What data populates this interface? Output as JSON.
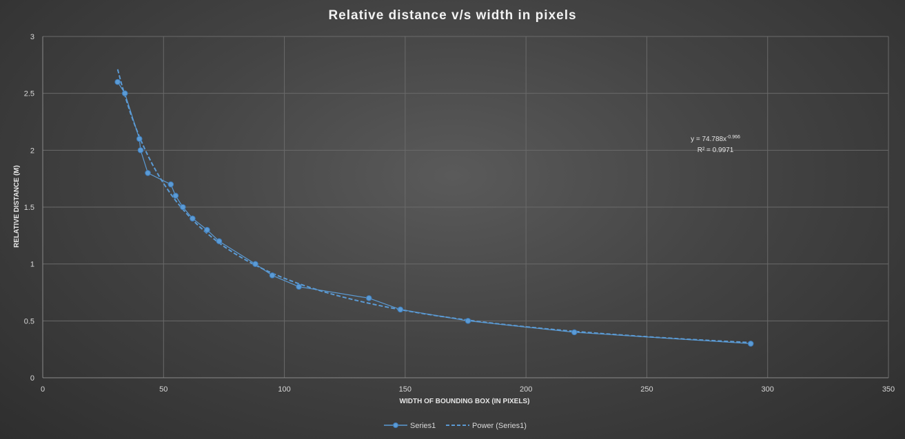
{
  "chart_data": {
    "type": "scatter",
    "title": "Relative distance  v/s  width  in  pixels",
    "xlabel": "WIDTH OF BOUNDING BOX (IN PIXELS)",
    "ylabel": "RELATIVE DISTANCE (M)",
    "xlim": [
      0,
      350
    ],
    "ylim": [
      0,
      3
    ],
    "xticks": [
      0,
      50,
      100,
      150,
      200,
      250,
      300,
      350
    ],
    "yticks": [
      0,
      0.5,
      1,
      1.5,
      2,
      2.5,
      3
    ],
    "grid": true,
    "legend_position": "bottom",
    "series": [
      {
        "name": "Series1",
        "style": "line-with-markers",
        "color": "#5b9bd5",
        "x": [
          31,
          34,
          40,
          40.5,
          43.5,
          53,
          55,
          58,
          62,
          68,
          73,
          88,
          95,
          106,
          135,
          148,
          176,
          220,
          293
        ],
        "y": [
          2.6,
          2.5,
          2.1,
          2.0,
          1.8,
          1.7,
          1.6,
          1.5,
          1.4,
          1.3,
          1.2,
          1.0,
          0.9,
          0.8,
          0.7,
          0.6,
          0.5,
          0.4,
          0.3
        ]
      },
      {
        "name": "Power (Series1)",
        "style": "dashed-trendline",
        "color": "#5b9bd5",
        "equation": {
          "coefficient": 74.788,
          "exponent": -0.966,
          "line1_prefix": "y = 74.788x",
          "line1_sup": "-0.966",
          "line2": "R² = 0.9971"
        }
      }
    ]
  }
}
